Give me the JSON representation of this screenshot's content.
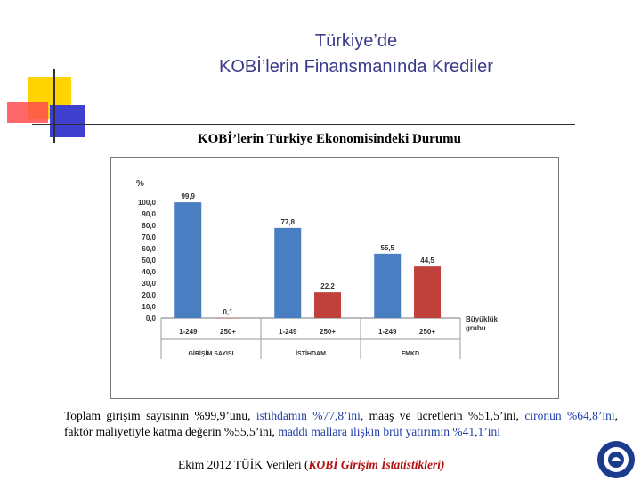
{
  "slide": {
    "title_line1": "Türkiye’de",
    "title_line2": "KOBİ’lerin Finansmanında Krediler",
    "text_part1": "Toplam girişim sayısının %99,9’unu, ",
    "text_part2": "istihdamın %77,8’ini",
    "text_part3": ", maaş ve ücretlerin %51,5’ini, ",
    "text_part4": "cironun %64,8’ini",
    "text_part5": ", faktör maliyetiyle katma değerin %55,5’ini, ",
    "text_part6": "maddi mallara ilişkin brüt yatırımın %41,1’ini",
    "source_prefix": "Ekim 2012  TÜİK Verileri (",
    "source_em": "KOBİ Girişim İstatistikleri)",
    "colors": {
      "title": "#3a3a8c",
      "highlight": "#1f3fa8",
      "source_em": "#b01010"
    }
  },
  "chart_data": {
    "type": "bar",
    "title": "KOBİ’lerin Türkiye Ekonomisindeki Durumu",
    "ylabel": "%",
    "ylim": [
      0,
      100
    ],
    "yticks": [
      "0,0",
      "10,0",
      "20,0",
      "30,0",
      "40,0",
      "50,0",
      "60,0",
      "70,0",
      "80,0",
      "90,0",
      "100,0"
    ],
    "x_axis_title": "Büyüklük grubu",
    "groups": [
      {
        "name": "GİRİŞİM SAYISI",
        "bars": [
          {
            "label": "1-249",
            "value": 99.9,
            "text": "99,9"
          },
          {
            "label": "250+",
            "value": 0.1,
            "text": "0,1"
          }
        ]
      },
      {
        "name": "İSTİHDAM",
        "bars": [
          {
            "label": "1-249",
            "value": 77.8,
            "text": "77,8"
          },
          {
            "label": "250+",
            "value": 22.2,
            "text": "22,2"
          }
        ]
      },
      {
        "name": "FMKD",
        "bars": [
          {
            "label": "1-249",
            "value": 55.5,
            "text": "55,5"
          },
          {
            "label": "250+",
            "value": 44.5,
            "text": "44,5"
          }
        ]
      }
    ],
    "colors": {
      "small": "#4a7ec2",
      "large": "#c0403c"
    }
  }
}
